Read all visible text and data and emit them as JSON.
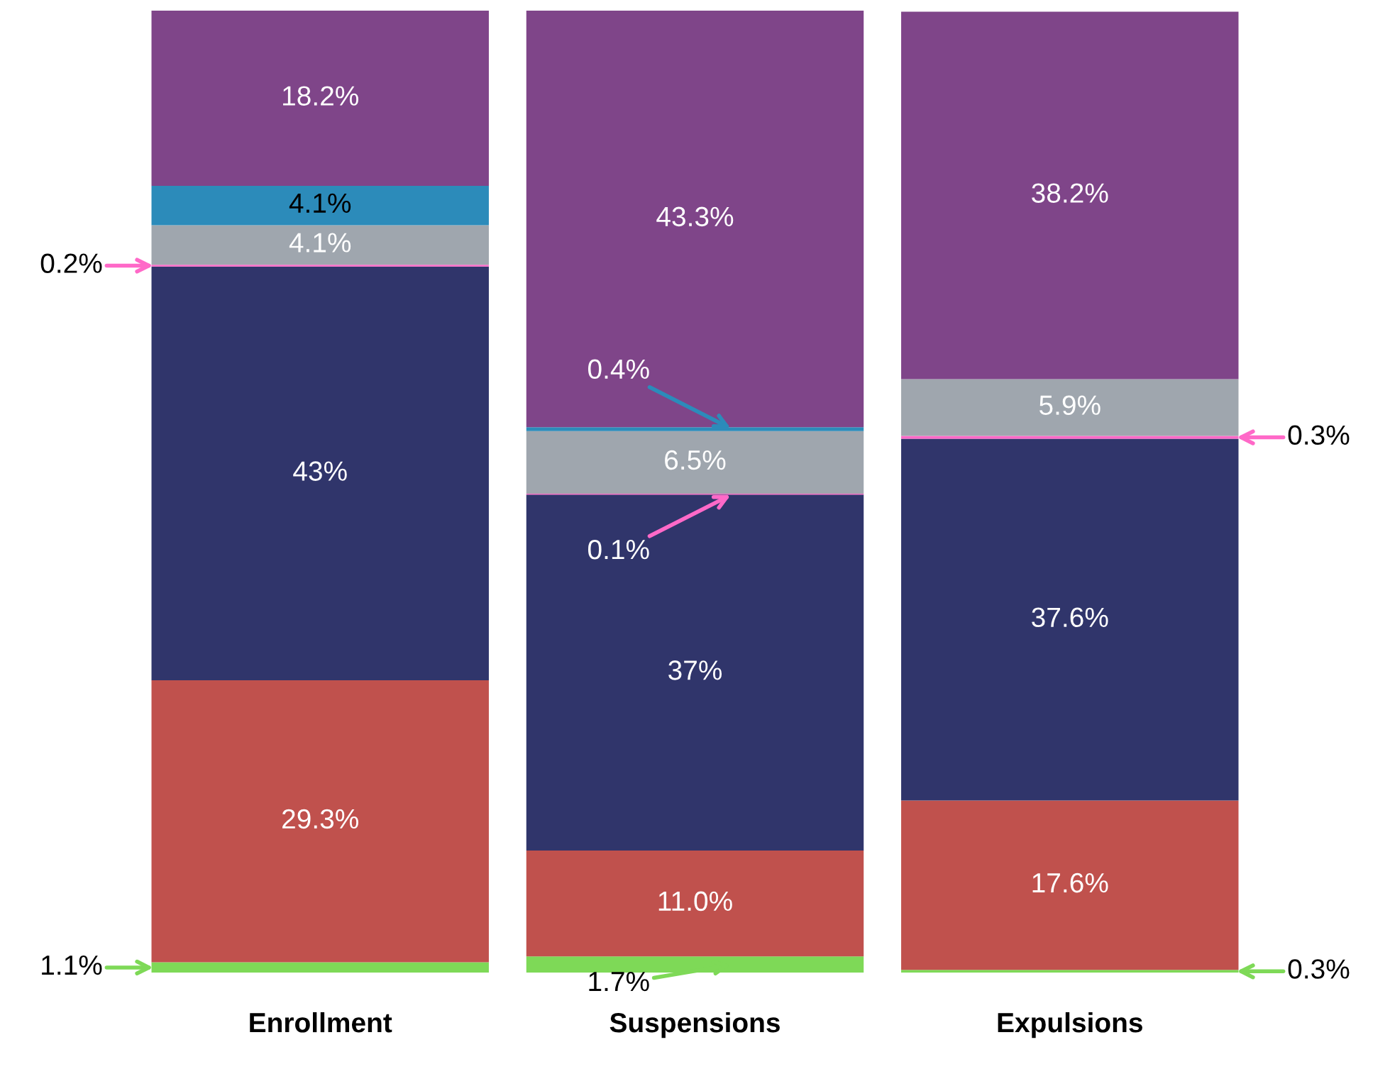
{
  "chart_data": {
    "type": "bar",
    "stacked": true,
    "categories": [
      "Enrollment",
      "Suspensions",
      "Expulsions"
    ],
    "ylim": [
      0,
      100
    ],
    "tick_labels": "x",
    "grid": false,
    "legend": false,
    "series": [
      {
        "color": "#7ed957",
        "values": [
          1.1,
          1.7,
          0.3
        ],
        "value_labels": [
          "1.1%",
          "1.7%",
          "0.3%"
        ]
      },
      {
        "color": "#c0514d",
        "values": [
          29.3,
          11.0,
          17.6
        ],
        "value_labels": [
          "29.3%",
          "11.0%",
          "17.6%"
        ]
      },
      {
        "color": "#30356b",
        "values": [
          43,
          37,
          37.6
        ],
        "value_labels": [
          "43%",
          "37%",
          "37.6%"
        ]
      },
      {
        "color": "#ff69c8",
        "values": [
          0.2,
          0.1,
          0.3
        ],
        "value_labels": [
          "0.2%",
          "0.1%",
          "0.3%"
        ]
      },
      {
        "color": "#9fa6ae",
        "values": [
          4.1,
          6.5,
          5.9
        ],
        "value_labels": [
          "4.1%",
          "6.5%",
          "5.9%"
        ]
      },
      {
        "color": "#2c8bba",
        "values": [
          4.1,
          0.4,
          null
        ],
        "value_labels": [
          "4.1%",
          "0.4%",
          null
        ]
      },
      {
        "color": "#7f4589",
        "values": [
          18.2,
          43.3,
          38.2
        ],
        "value_labels": [
          "18.2%",
          "43.3%",
          "38.2%"
        ]
      }
    ]
  }
}
